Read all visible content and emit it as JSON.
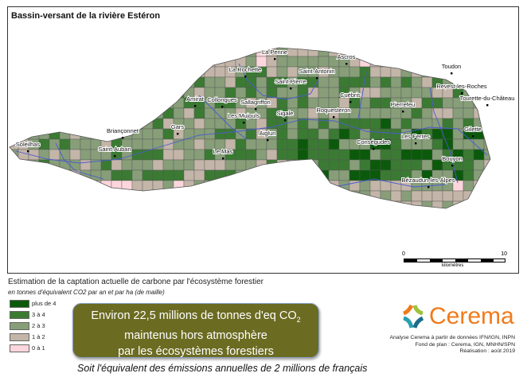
{
  "title": "Bassin-versant de la rivière Estéron",
  "colors": {
    "plus_de_4": "#0b5a0b",
    "3_a_4": "#3b7a33",
    "2_a_3": "#879e79",
    "1_a_2": "#c3b5a8",
    "0_a_1": "#fcd6dc",
    "river": "#4a5bd0",
    "callout": "#6b6b22",
    "brand": "#f07a1a"
  },
  "towns": [
    "La Penne",
    "Ascros",
    "La Rochette",
    "Saint-Antonin",
    "Saint-Pierre",
    "Toudon",
    "Revest-les-Roches",
    "Tourette-du-Château",
    "Cuébris",
    "Pierrefeu",
    "Amirat",
    "Collongues",
    "Sallagriffon",
    "Les Mujouls",
    "Sigale",
    "Roquesteron",
    "Gars",
    "Briançonnet",
    "Aiglun",
    "Gilette",
    "Les Ferres",
    "Conségudes",
    "Soleilhas",
    "Saint-Auban",
    "Le Mas",
    "Bouyon",
    "Bézaudun-les-Alpes"
  ],
  "scale": {
    "start": "0",
    "end": "10",
    "unit": "kilomètres"
  },
  "legend": {
    "title": "Estimation de la captation actuelle de carbone par l'écosystème forestier",
    "subtitle": "en tonnes d'équivalent CO2 par an et par ha (de maille)",
    "classes": [
      "plus de 4",
      "3 à 4",
      "2 à 3",
      "1 à 2",
      "0 à 1"
    ]
  },
  "callout": {
    "line1": "Environ 22,5 millions de tonnes d'eq CO",
    "line1_sub": "2",
    "line2": "maintenus hors atmosphère",
    "line3": "par les écosystèmes forestiers"
  },
  "equivalent": "Soit l'équivalent des émissions annuelles de 2 millions de français",
  "logo": {
    "name": "Cerema"
  },
  "credits": [
    "Analyse Cerema à partir de données IFN/IGN, INPN",
    "Fond de plan : Cerema, IGN, MNHN/SPN",
    "Réalisation : août 2019"
  ]
}
